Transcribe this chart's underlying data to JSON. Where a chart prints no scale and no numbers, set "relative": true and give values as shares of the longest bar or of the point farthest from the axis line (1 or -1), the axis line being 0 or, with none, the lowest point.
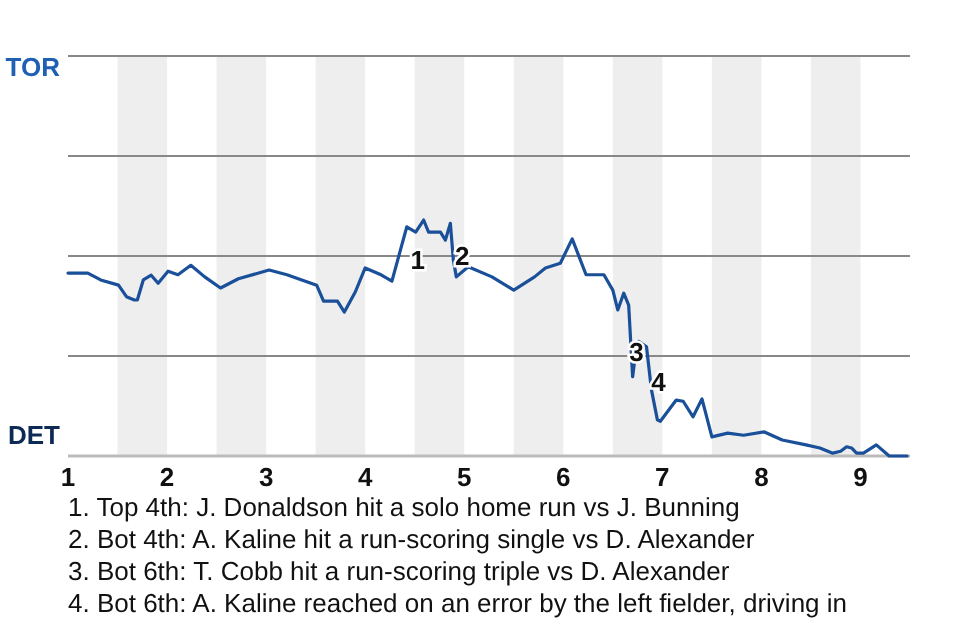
{
  "chart_data": {
    "type": "line",
    "relative": true,
    "xlim": [
      1,
      9.5
    ],
    "xticks": [
      1,
      2,
      3,
      4,
      5,
      6,
      7,
      8,
      9
    ],
    "marker": "none",
    "line_style": "solid",
    "ref_lines": [
      {
        "axis": "y",
        "value": 0.424,
        "color": "#888888"
      },
      {
        "axis": "y",
        "value": 0.847,
        "color": "#888888"
      },
      {
        "axis": "y",
        "value": 1.271,
        "color": "#888888"
      },
      {
        "axis": "y",
        "value": 1.695,
        "color": "#888888"
      }
    ],
    "bands": [
      {
        "axis": "x",
        "from": 1.5,
        "to": 2,
        "color": "#eeeeee"
      },
      {
        "axis": "x",
        "from": 2.5,
        "to": 3,
        "color": "#eeeeee"
      },
      {
        "axis": "x",
        "from": 3.5,
        "to": 4,
        "color": "#eeeeee"
      },
      {
        "axis": "x",
        "from": 4.5,
        "to": 5,
        "color": "#eeeeee"
      },
      {
        "axis": "x",
        "from": 5.5,
        "to": 6,
        "color": "#eeeeee"
      },
      {
        "axis": "x",
        "from": 6.5,
        "to": 7,
        "color": "#eeeeee"
      },
      {
        "axis": "x",
        "from": 7.5,
        "to": 8,
        "color": "#eeeeee"
      },
      {
        "axis": "x",
        "from": 8.5,
        "to": 9,
        "color": "#eeeeee"
      }
    ],
    "series": [
      {
        "color": "#1a4f99",
        "x": [
          1,
          1.2,
          1.33,
          1.51,
          1.59,
          1.67,
          1.7,
          1.76,
          1.84,
          1.91,
          2.01,
          2.11,
          2.24,
          2.38,
          2.54,
          2.72,
          3.03,
          3.21,
          3.51,
          3.58,
          3.72,
          3.79,
          3.9,
          4,
          4.16,
          4.27,
          4.42,
          4.51,
          4.59,
          4.64,
          4.76,
          4.81,
          4.86,
          4.89,
          4.92,
          5.04,
          5.28,
          5.5,
          5.71,
          5.82,
          5.97,
          6.09,
          6.23,
          6.41,
          6.5,
          6.55,
          6.61,
          6.66,
          6.7,
          6.73,
          6.76,
          6.84,
          6.89,
          6.95,
          6.98,
          7.14,
          7.21,
          7.31,
          7.4,
          7.5,
          7.66,
          7.82,
          8.03,
          8.21,
          8.45,
          8.59,
          8.72,
          8.8,
          8.86,
          8.91,
          8.96,
          9.03,
          9.16,
          9.29,
          9.47
        ],
        "values": [
          0.775,
          0.775,
          0.746,
          0.724,
          0.675,
          0.661,
          0.661,
          0.746,
          0.766,
          0.732,
          0.783,
          0.768,
          0.808,
          0.759,
          0.712,
          0.751,
          0.788,
          0.768,
          0.724,
          0.656,
          0.656,
          0.61,
          0.695,
          0.797,
          0.768,
          0.741,
          0.971,
          0.949,
          1,
          0.949,
          0.949,
          0.915,
          0.986,
          0.831,
          0.759,
          0.802,
          0.759,
          0.703,
          0.759,
          0.797,
          0.817,
          0.92,
          0.768,
          0.768,
          0.703,
          0.619,
          0.69,
          0.639,
          0.336,
          0.436,
          0.486,
          0.463,
          0.28,
          0.153,
          0.147,
          0.237,
          0.232,
          0.166,
          0.242,
          0.081,
          0.097,
          0.088,
          0.102,
          0.068,
          0.047,
          0.034,
          0.012,
          0.02,
          0.039,
          0.034,
          0.012,
          0.012,
          0.047,
          0,
          0
        ]
      }
    ],
    "annotations": [
      "TOR",
      "DET",
      {
        "text": "1",
        "x": 4.53,
        "y": 0.822
      },
      {
        "text": "2",
        "x": 4.98,
        "y": 0.839
      },
      {
        "text": "3",
        "x": 6.74,
        "y": 0.432
      },
      {
        "text": "4",
        "x": 6.96,
        "y": 0.305
      },
      "1. Top 4th: J. Donaldson hit a solo home run vs J. Bunning",
      "2. Bot 4th: A. Kaline hit a run-scoring single vs D. Alexander",
      "3. Bot 6th: T. Cobb hit a run-scoring triple vs D. Alexander",
      "4. Bot 6th: A. Kaline reached on an error by the left fielder, driving in"
    ]
  }
}
